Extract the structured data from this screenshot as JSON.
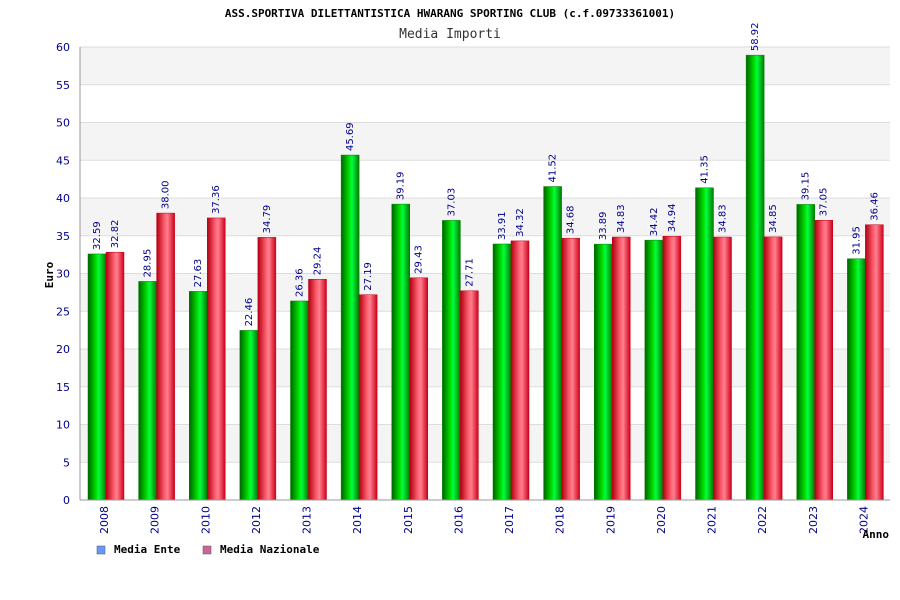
{
  "chart_data": {
    "type": "bar",
    "title": "ASS.SPORTIVA DILETTANTISTICA HWARANG SPORTING CLUB (c.f.09733361001)",
    "subtitle": "Media Importi",
    "xlabel": "Anno",
    "ylabel": "Euro",
    "ylim": [
      0,
      60
    ],
    "yticks": [
      0,
      5,
      10,
      15,
      20,
      25,
      30,
      35,
      40,
      45,
      50,
      55,
      60
    ],
    "grid": true,
    "legend_position": "bottom-left",
    "categories": [
      "2008",
      "2009",
      "2010",
      "2012",
      "2013",
      "2014",
      "2015",
      "2016",
      "2017",
      "2018",
      "2019",
      "2020",
      "2021",
      "2022",
      "2023",
      "2024"
    ],
    "series": [
      {
        "name": "Media Ente",
        "color": "#00c000",
        "legend_color": "#6699ff",
        "values": [
          32.59,
          28.95,
          27.63,
          22.46,
          26.36,
          45.69,
          39.19,
          37.03,
          33.91,
          41.52,
          33.89,
          34.42,
          41.35,
          58.92,
          39.15,
          31.95
        ],
        "labels": [
          "32.59",
          "28.95",
          "27.63",
          "22.46",
          "26.36",
          "45.69",
          "39.19",
          "37.03",
          "33.91",
          "41.52",
          "33.89",
          "34.42",
          "41.35",
          "58.92",
          "39.15",
          "31.95"
        ]
      },
      {
        "name": "Media Nazionale",
        "color": "#e00020",
        "legend_color": "#cc6699",
        "values": [
          32.82,
          38.0,
          37.36,
          34.79,
          29.24,
          27.19,
          29.43,
          27.71,
          34.32,
          34.68,
          34.83,
          34.94,
          34.83,
          34.85,
          37.05,
          36.46
        ],
        "labels": [
          "32.82",
          "38.00",
          "37.36",
          "34.79",
          "29.24",
          "27.19",
          "29.43",
          "27.71",
          "34.32",
          "34.68",
          "34.83",
          "34.94",
          "34.83",
          "34.85",
          "37.05",
          "36.46"
        ]
      }
    ]
  }
}
